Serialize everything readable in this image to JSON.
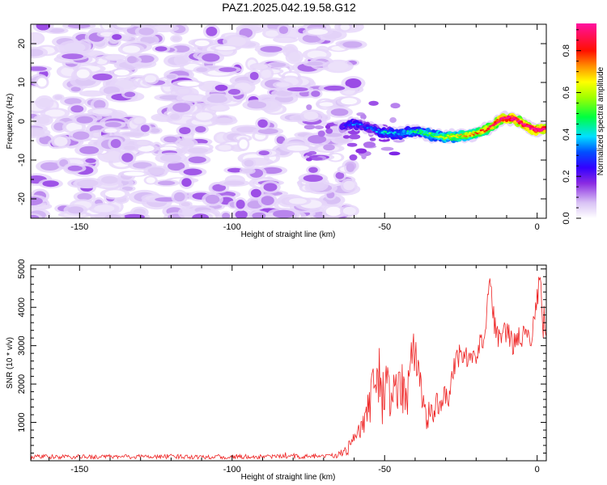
{
  "chart_data": [
    {
      "type": "heatmap",
      "title": "PAZ1.2025.042.19.58.G12",
      "xlabel": "Height of straight line (km)",
      "ylabel": "Frequency (Hz)",
      "xlim": [
        -166,
        3
      ],
      "ylim": [
        -25,
        25
      ],
      "xticks": [
        "-150",
        "-100",
        "-50",
        "0"
      ],
      "yticks": [
        "-20",
        "-10",
        "0",
        "10",
        "20"
      ],
      "colorbar": {
        "label": "Normalized spectral amplitude",
        "range": [
          0,
          0.93
        ],
        "ticks": [
          "0.0",
          "0.2",
          "0.4",
          "0.6",
          "0.8"
        ],
        "colormap": "rainbow (white → violet → blue → cyan → green → yellow → red → magenta)"
      },
      "ridge": {
        "height_km": [
          -64,
          -60,
          -55,
          -50,
          -45,
          -40,
          -35,
          -30,
          -25,
          -20,
          -15,
          -12,
          -8,
          -5,
          -2,
          0,
          3
        ],
        "frequency_hz": [
          -1.5,
          -0.5,
          -1.8,
          -3.0,
          -3.2,
          -2.5,
          -3.5,
          -4.0,
          -3.8,
          -3.2,
          -1.5,
          0.5,
          0.8,
          -0.5,
          -1.8,
          -2.3,
          -2.0
        ],
        "amplitude": [
          0.2,
          0.3,
          0.25,
          0.35,
          0.3,
          0.4,
          0.45,
          0.55,
          0.6,
          0.65,
          0.75,
          0.85,
          0.9,
          0.85,
          0.9,
          0.92,
          0.9
        ]
      },
      "noise_region_km": [
        -166,
        -64
      ],
      "noise_amplitude": [
        0.0,
        0.15
      ]
    },
    {
      "type": "line",
      "xlabel": "Height of straight line (km)",
      "ylabel": "SNR (10 * v/v)",
      "xlim": [
        -166,
        3
      ],
      "ylim": [
        0,
        5100
      ],
      "xticks": [
        "-150",
        "-100",
        "-50",
        "0"
      ],
      "yticks": [
        "1000",
        "2000",
        "3000",
        "4000",
        "5000"
      ],
      "series": [
        {
          "color": "#ee2222",
          "x": [
            -166,
            -150,
            -120,
            -100,
            -80,
            -66,
            -62,
            -58,
            -55,
            -53,
            -51,
            -49,
            -47,
            -45,
            -43,
            -41,
            -39,
            -37,
            -35,
            -33,
            -31,
            -29,
            -27,
            -25,
            -23,
            -21,
            -19,
            -17,
            -15.5,
            -14,
            -12,
            -10,
            -8,
            -6,
            -4,
            -2,
            0,
            1,
            2,
            3
          ],
          "y": [
            100,
            100,
            110,
            100,
            110,
            120,
            300,
            800,
            1300,
            2200,
            1600,
            1900,
            1700,
            2200,
            1600,
            2800,
            2500,
            1200,
            1200,
            1500,
            1600,
            1700,
            2500,
            2900,
            2700,
            2600,
            3000,
            3400,
            4900,
            3500,
            3100,
            3400,
            3000,
            3300,
            3200,
            3300,
            4200,
            4700,
            3700,
            3200
          ],
          "noise_amplitude": [
            60,
            60,
            60,
            60,
            60,
            70,
            150,
            300,
            600,
            700,
            700,
            700,
            650,
            700,
            700,
            700,
            700,
            450,
            400,
            350,
            300,
            300,
            350,
            300,
            300,
            300,
            300,
            350,
            250,
            350,
            300,
            300,
            300,
            300,
            300,
            350,
            450,
            300,
            500,
            600
          ]
        }
      ]
    }
  ]
}
